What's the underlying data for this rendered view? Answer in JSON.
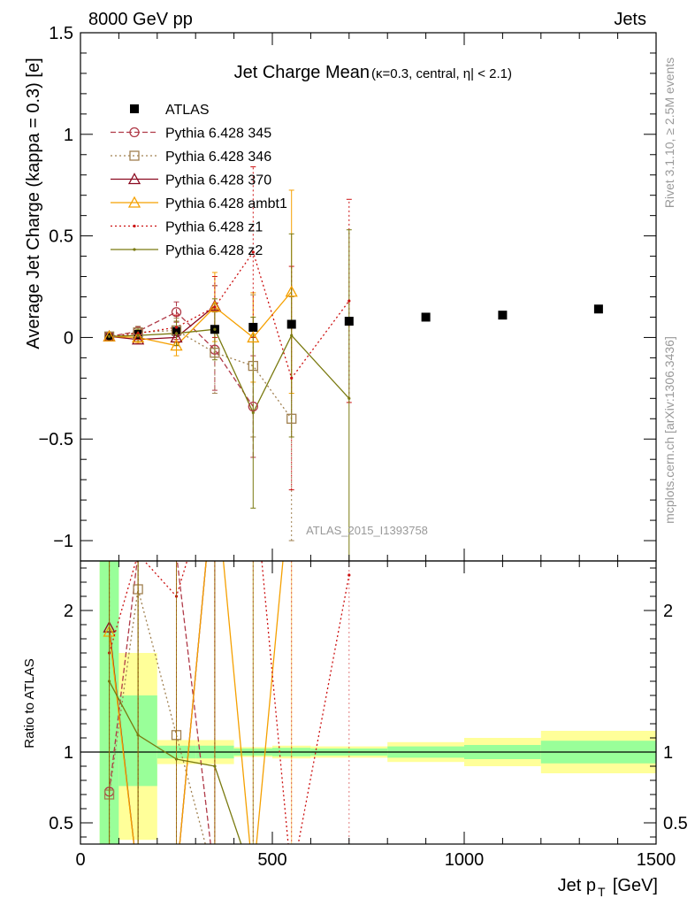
{
  "header": {
    "left": "8000 GeV pp",
    "right": "Jets"
  },
  "side_labels": {
    "rivet": "Rivet 3.1.10, ≥ 2.5M events",
    "mcplots": "mcplots.cern.ch [arXiv:1306.3436]"
  },
  "chart_data": [
    {
      "type": "scatter",
      "title": "Jet Charge Mean",
      "subtitle": "(κ=0.3, central, η| < 2.1)",
      "ylabel": "Average Jet Charge (kappa = 0.3) [e]",
      "analysis_label": "ATLAS_2015_I1393758",
      "xlim": [
        0,
        1500
      ],
      "ylim": [
        -1.1,
        1.5
      ],
      "yticks": [
        "1.5",
        "1",
        "0.5",
        "0",
        "−0.5",
        "−1"
      ],
      "series": [
        {
          "name": "ATLAS",
          "color": "#000000",
          "style": "data",
          "x": [
            75,
            150,
            250,
            350,
            450,
            550,
            700,
            900,
            1100,
            1350
          ],
          "y": [
            0.005,
            0.015,
            0.03,
            0.04,
            0.05,
            0.065,
            0.08,
            0.1,
            0.11,
            0.14
          ]
        },
        {
          "name": "Pythia 6.428 345",
          "color": "#b03a48",
          "style": "circle-dashed",
          "x": [
            75,
            150,
            250,
            350,
            450
          ],
          "y": [
            0.005,
            0.03,
            0.125,
            -0.06,
            -0.34
          ],
          "err": [
            0.02,
            0.02,
            0.05,
            0.2,
            0.25
          ]
        },
        {
          "name": "Pythia 6.428 346",
          "color": "#a08050",
          "style": "square-dotted",
          "x": [
            75,
            150,
            250,
            350,
            450,
            550
          ],
          "y": [
            0.005,
            0.025,
            0.035,
            -0.075,
            -0.14,
            -0.4
          ],
          "err": [
            0.02,
            0.03,
            0.06,
            0.2,
            0.35,
            0.6
          ]
        },
        {
          "name": "Pythia 6.428 370",
          "color": "#8b0a20",
          "style": "triangle-solid",
          "x": [
            75,
            150,
            250,
            350
          ],
          "y": [
            0.005,
            -0.01,
            0.0,
            0.155
          ],
          "err": [
            0.02,
            0.02,
            0.04,
            0.1
          ]
        },
        {
          "name": "Pythia 6.428 ambt1",
          "color": "#f5a000",
          "style": "triangle-solid",
          "x": [
            75,
            150,
            250,
            350,
            450,
            550
          ],
          "y": [
            0.005,
            0.0,
            -0.04,
            0.15,
            0.0,
            0.225
          ],
          "err": [
            0.02,
            0.03,
            0.05,
            0.17,
            0.22,
            0.5
          ]
        },
        {
          "name": "Pythia 6.428 z1",
          "color": "#cc1010",
          "style": "dot-dotted",
          "x": [
            75,
            150,
            250,
            350,
            450,
            550,
            700
          ],
          "y": [
            0.005,
            0.02,
            0.05,
            0.15,
            0.42,
            -0.2,
            0.18
          ],
          "err": [
            0.02,
            0.03,
            0.06,
            0.15,
            0.42,
            0.55,
            0.5
          ]
        },
        {
          "name": "Pythia 6.428 z2",
          "color": "#7a7a10",
          "style": "dot-solid",
          "x": [
            75,
            150,
            250,
            350,
            450,
            550,
            700
          ],
          "y": [
            0.005,
            0.01,
            0.02,
            0.04,
            -0.37,
            0.01,
            -0.3
          ],
          "err": [
            0.02,
            0.03,
            0.06,
            0.15,
            0.47,
            0.5,
            0.83
          ]
        }
      ]
    },
    {
      "type": "line",
      "ylabel": "Ratio to ATLAS",
      "xlabel": "Jet p",
      "xlabel_sub": "T",
      "xlabel_unit": "[GeV]",
      "xlim": [
        0,
        1500
      ],
      "ylim": [
        0.35,
        2.35
      ],
      "xticks": [
        "0",
        "500",
        "1000",
        "1500"
      ],
      "yticks": [
        "2",
        "1",
        "0.5"
      ],
      "bands": [
        {
          "x0": 50,
          "x1": 100,
          "g": [
            0.35,
            2.35
          ],
          "y": [
            0.35,
            2.35
          ]
        },
        {
          "x0": 100,
          "x1": 200,
          "g": [
            0.76,
            1.4
          ],
          "y": [
            0.38,
            1.7
          ]
        },
        {
          "x0": 200,
          "x1": 300,
          "g": [
            0.955,
            1.045
          ],
          "y": [
            0.915,
            1.085
          ]
        },
        {
          "x0": 300,
          "x1": 400,
          "g": [
            0.955,
            1.045
          ],
          "y": [
            0.915,
            1.085
          ]
        },
        {
          "x0": 400,
          "x1": 500,
          "g": [
            0.975,
            1.025
          ],
          "y": [
            0.965,
            1.035
          ]
        },
        {
          "x0": 500,
          "x1": 600,
          "g": [
            0.97,
            1.03
          ],
          "y": [
            0.955,
            1.045
          ]
        },
        {
          "x0": 600,
          "x1": 800,
          "g": [
            0.975,
            1.025
          ],
          "y": [
            0.96,
            1.04
          ]
        },
        {
          "x0": 800,
          "x1": 1000,
          "g": [
            0.96,
            1.04
          ],
          "y": [
            0.93,
            1.07
          ]
        },
        {
          "x0": 1000,
          "x1": 1200,
          "g": [
            0.95,
            1.05
          ],
          "y": [
            0.9,
            1.1
          ]
        },
        {
          "x0": 1200,
          "x1": 1500,
          "g": [
            0.92,
            1.08
          ],
          "y": [
            0.85,
            1.15
          ]
        }
      ],
      "ratio_series": [
        {
          "name": "Pythia 6.428 345",
          "x": [
            75,
            150,
            250,
            350
          ],
          "y": [
            0.72,
            2.4,
            2.4,
            0.1
          ]
        },
        {
          "name": "Pythia 6.428 346",
          "x": [
            75,
            150,
            250,
            350
          ],
          "y": [
            0.7,
            2.15,
            1.12,
            0.1
          ]
        },
        {
          "name": "Pythia 6.428 370",
          "x": [
            75,
            150,
            250,
            350
          ],
          "y": [
            1.88,
            0.1,
            0.1,
            3.0
          ]
        },
        {
          "name": "Pythia 6.428 ambt1",
          "x": [
            75,
            150,
            250,
            350,
            450,
            550
          ],
          "y": [
            1.85,
            0.1,
            0.1,
            3.0,
            0.1,
            3.0
          ]
        },
        {
          "name": "Pythia 6.428 z1",
          "x": [
            75,
            150,
            250,
            350,
            450,
            550,
            700
          ],
          "y": [
            1.7,
            2.4,
            2.1,
            3.0,
            3.0,
            0.1,
            2.25
          ]
        },
        {
          "name": "Pythia 6.428 z2",
          "x": [
            75,
            150,
            250,
            350,
            450
          ],
          "y": [
            1.5,
            1.12,
            0.95,
            0.9,
            0.1
          ]
        }
      ]
    }
  ]
}
